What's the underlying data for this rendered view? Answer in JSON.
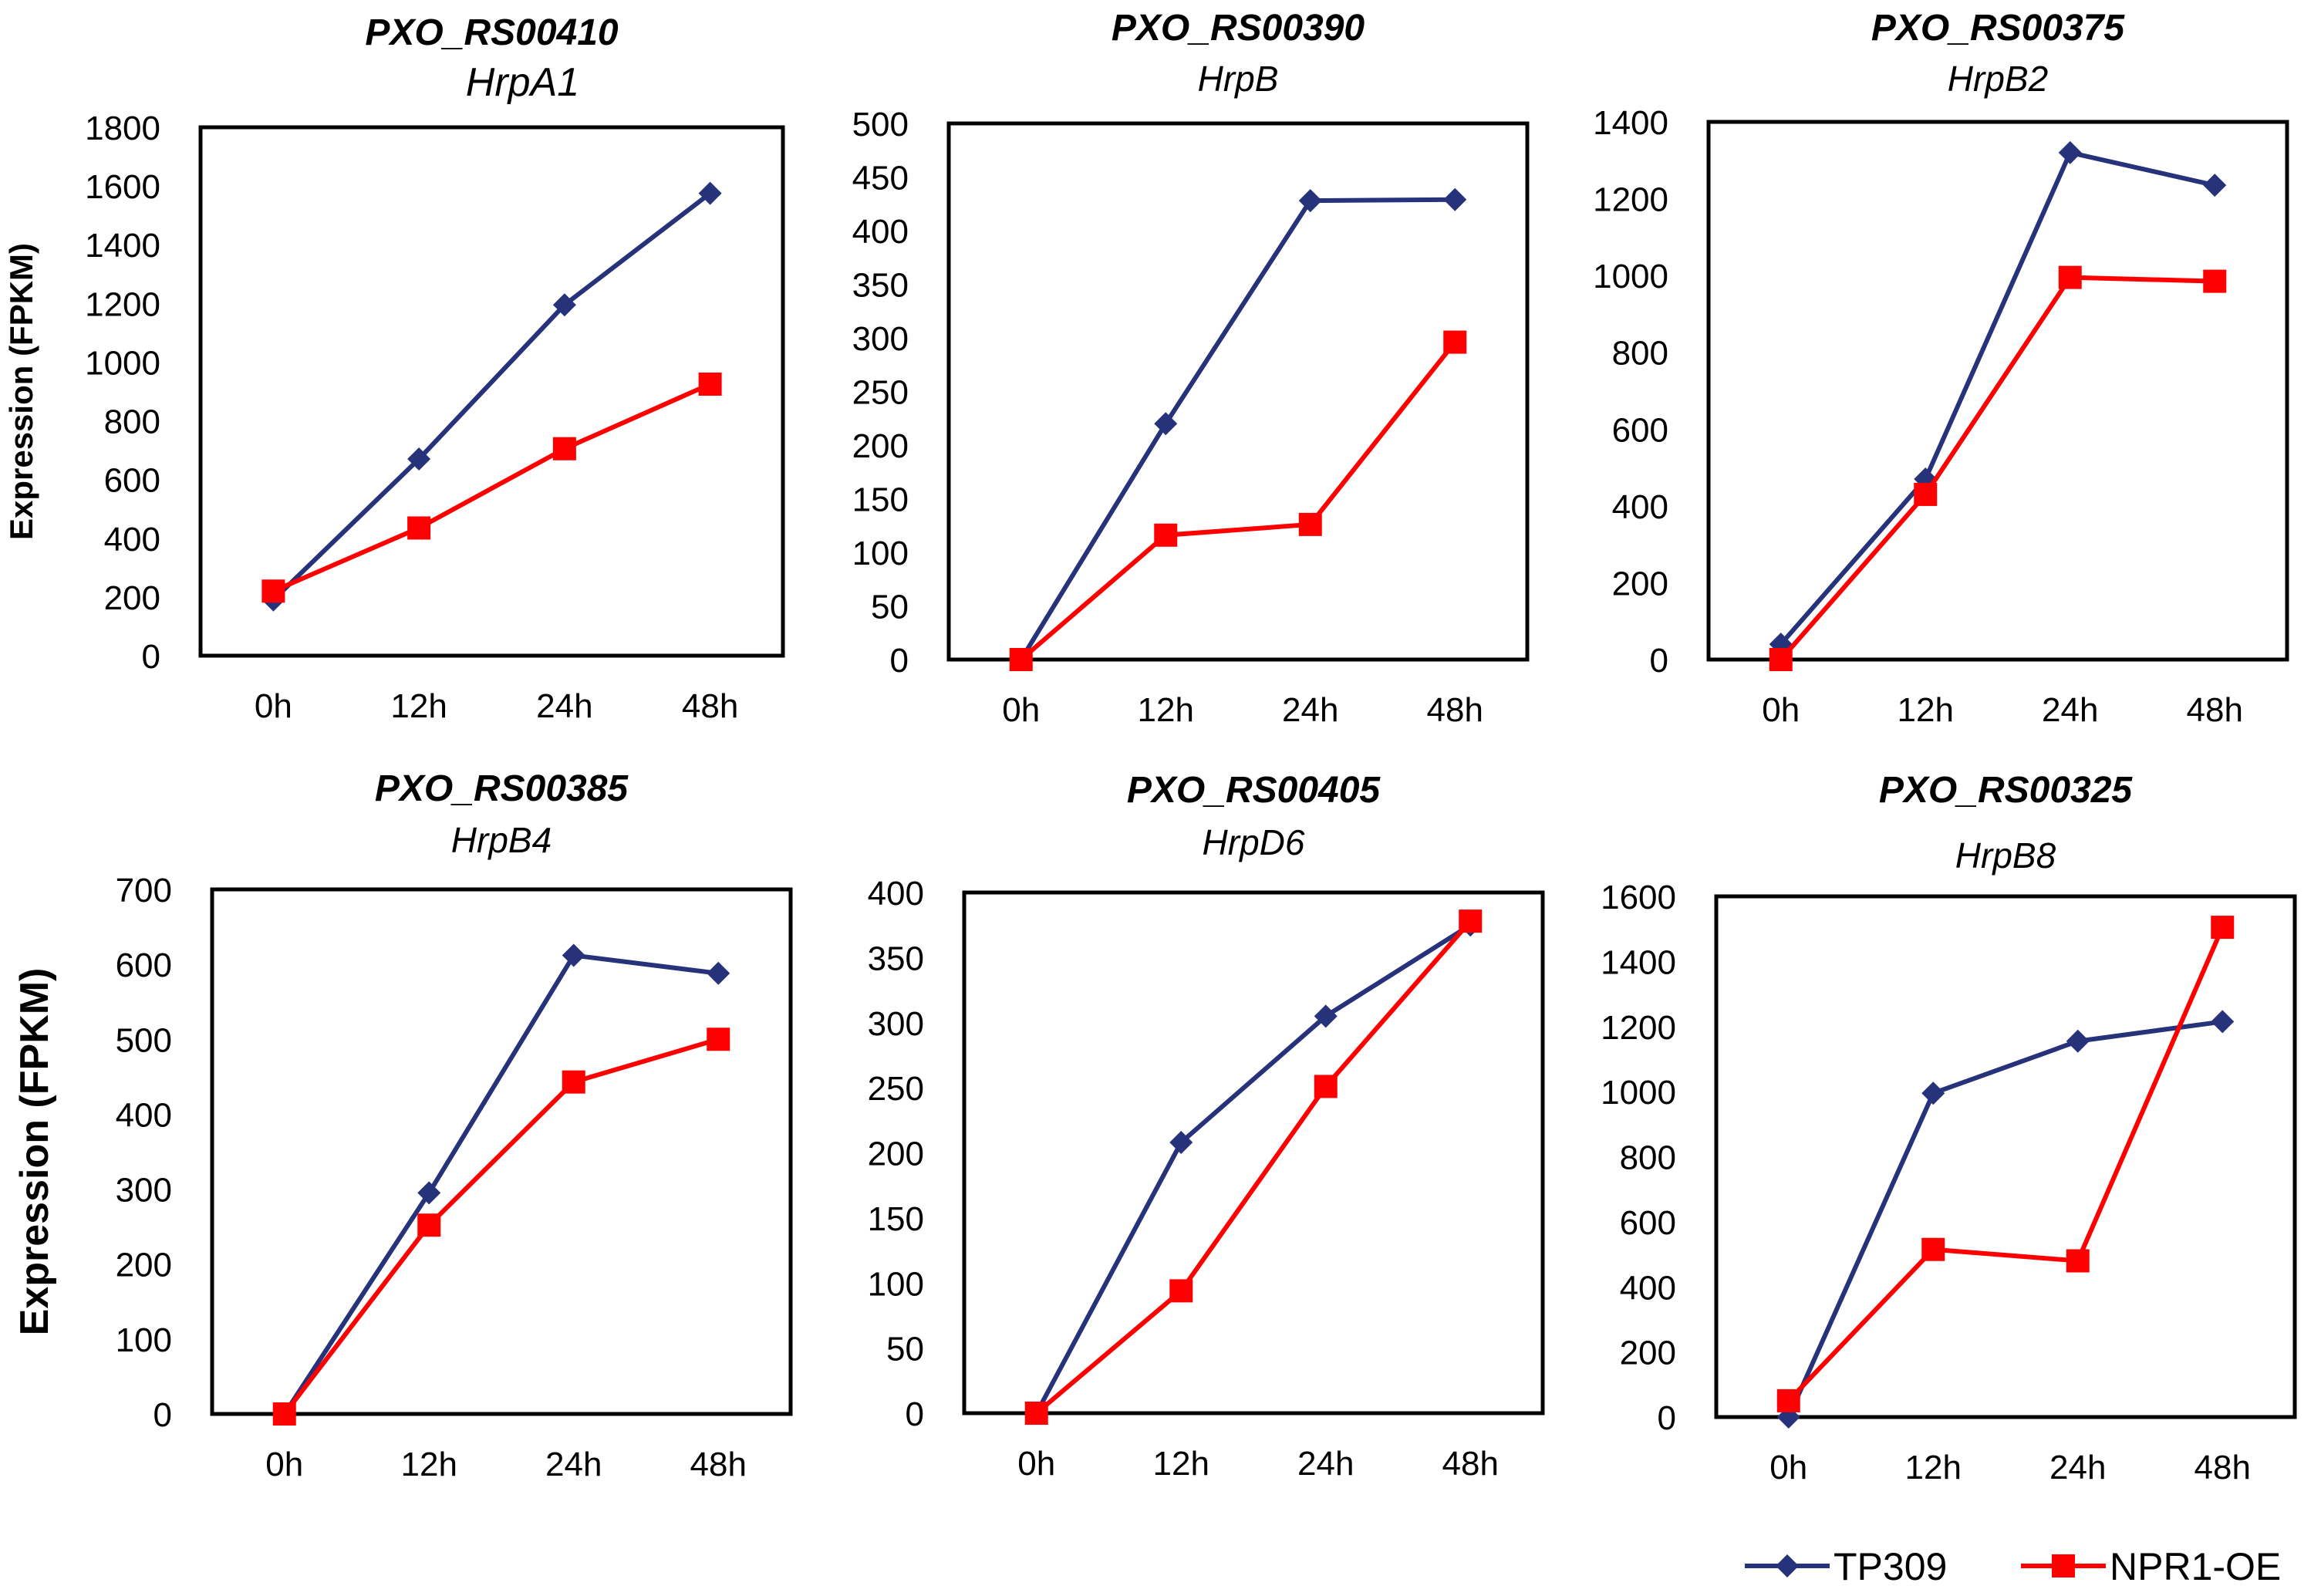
{
  "colors": {
    "tp309": "#26327a",
    "npr1_oe": "#ff0000",
    "frame": "#000000"
  },
  "legend": {
    "items": [
      {
        "label": "TP309",
        "marker": "diamond",
        "color": "#26327a"
      },
      {
        "label": "NPR1-OE",
        "marker": "square",
        "color": "#ff0000"
      }
    ]
  },
  "ylabel": "Expression (FPKM)",
  "chart_data": [
    {
      "type": "line",
      "title": "PXO_RS00410",
      "subtitle": "HrpA1",
      "categories": [
        "0h",
        "12h",
        "24h",
        "48h"
      ],
      "ylim": [
        0,
        1800
      ],
      "yticks": [
        0,
        200,
        400,
        600,
        800,
        1000,
        1200,
        1400,
        1600,
        1800
      ],
      "ylabel": "Expression (FPKM)",
      "series": [
        {
          "name": "TP309",
          "values": [
            190,
            670,
            1195,
            1575
          ]
        },
        {
          "name": "NPR1-OE",
          "values": [
            220,
            435,
            705,
            925
          ]
        }
      ]
    },
    {
      "type": "line",
      "title": "PXO_RS00390",
      "subtitle": "HrpB",
      "categories": [
        "0h",
        "12h",
        "24h",
        "48h"
      ],
      "ylim": [
        0,
        500
      ],
      "yticks": [
        0,
        50,
        100,
        150,
        200,
        250,
        300,
        350,
        400,
        450,
        500
      ],
      "ylabel": "",
      "series": [
        {
          "name": "TP309",
          "values": [
            0,
            220,
            428,
            429
          ]
        },
        {
          "name": "NPR1-OE",
          "values": [
            0,
            116,
            126,
            296
          ]
        }
      ]
    },
    {
      "type": "line",
      "title": "PXO_RS00375",
      "subtitle": "HrpB2",
      "categories": [
        "0h",
        "12h",
        "24h",
        "48h"
      ],
      "ylim": [
        0,
        1400
      ],
      "yticks": [
        0,
        200,
        400,
        600,
        800,
        1000,
        1200,
        1400
      ],
      "ylabel": "",
      "series": [
        {
          "name": "TP309",
          "values": [
            40,
            470,
            1320,
            1235
          ]
        },
        {
          "name": "NPR1-OE",
          "values": [
            0,
            430,
            995,
            985
          ]
        }
      ]
    },
    {
      "type": "line",
      "title": "PXO_RS00385",
      "subtitle": "HrpB4",
      "categories": [
        "0h",
        "12h",
        "24h",
        "48h"
      ],
      "ylim": [
        0,
        700
      ],
      "yticks": [
        0,
        100,
        200,
        300,
        400,
        500,
        600,
        700
      ],
      "ylabel": "Expression (FPKM)",
      "series": [
        {
          "name": "TP309",
          "values": [
            0,
            295,
            612,
            588
          ]
        },
        {
          "name": "NPR1-OE",
          "values": [
            0,
            252,
            443,
            500
          ]
        }
      ]
    },
    {
      "type": "line",
      "title": "PXO_RS00405",
      "subtitle": "HrpD6",
      "categories": [
        "0h",
        "12h",
        "24h",
        "48h"
      ],
      "ylim": [
        0,
        400
      ],
      "yticks": [
        0,
        50,
        100,
        150,
        200,
        250,
        300,
        350,
        400
      ],
      "ylabel": "",
      "series": [
        {
          "name": "TP309",
          "values": [
            0,
            208,
            305,
            375
          ]
        },
        {
          "name": "NPR1-OE",
          "values": [
            0,
            94,
            251,
            378
          ]
        }
      ]
    },
    {
      "type": "line",
      "title": "PXO_RS00325",
      "subtitle": "HrpB8",
      "categories": [
        "0h",
        "12h",
        "24h",
        "48h"
      ],
      "ylim": [
        0,
        1600
      ],
      "yticks": [
        0,
        200,
        400,
        600,
        800,
        1000,
        1200,
        1400,
        1600
      ],
      "ylabel": "",
      "series": [
        {
          "name": "TP309",
          "values": [
            0,
            995,
            1155,
            1215
          ]
        },
        {
          "name": "NPR1-OE",
          "values": [
            50,
            515,
            480,
            1505
          ]
        }
      ]
    }
  ]
}
